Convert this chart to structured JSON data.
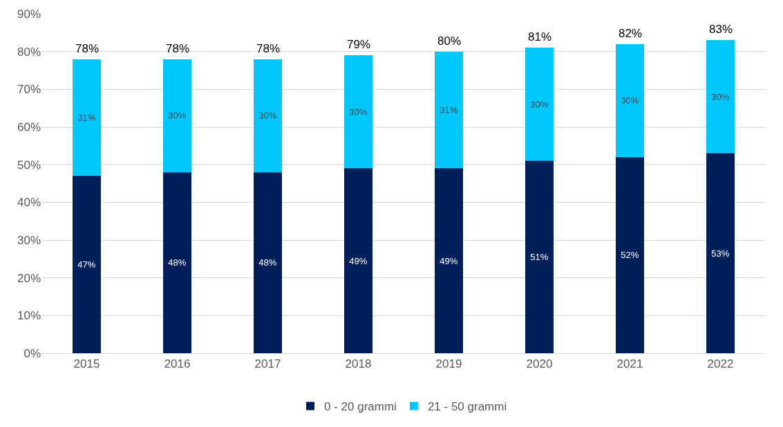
{
  "chart_data": {
    "type": "bar",
    "stacked": true,
    "categories": [
      "2015",
      "2016",
      "2017",
      "2018",
      "2019",
      "2020",
      "2021",
      "2022"
    ],
    "series": [
      {
        "name": "0 - 20 grammi",
        "color": "#001f5b",
        "values": [
          47,
          48,
          48,
          49,
          49,
          51,
          52,
          53
        ],
        "value_labels": [
          "47%",
          "48%",
          "48%",
          "49%",
          "49%",
          "51%",
          "52%",
          "53%"
        ]
      },
      {
        "name": "21 - 50 grammi",
        "color": "#00c8ff",
        "values": [
          31,
          30,
          30,
          30,
          31,
          30,
          30,
          30
        ],
        "value_labels": [
          "31%",
          "30%",
          "30%",
          "30%",
          "31%",
          "30%",
          "30%",
          "30%"
        ]
      }
    ],
    "totals": [
      "78%",
      "78%",
      "78%",
      "79%",
      "80%",
      "81%",
      "82%",
      "83%"
    ],
    "ylim": [
      0,
      90
    ],
    "yticks": [
      {
        "value": 0,
        "label": "0%"
      },
      {
        "value": 10,
        "label": "10%"
      },
      {
        "value": 20,
        "label": "20%"
      },
      {
        "value": 30,
        "label": "30%"
      },
      {
        "value": 40,
        "label": "40%"
      },
      {
        "value": 50,
        "label": "50%"
      },
      {
        "value": 60,
        "label": "60%"
      },
      {
        "value": 70,
        "label": "70%"
      },
      {
        "value": 80,
        "label": "80%"
      },
      {
        "value": 90,
        "label": "90%"
      }
    ],
    "grid": "y",
    "legend": "bottom"
  }
}
